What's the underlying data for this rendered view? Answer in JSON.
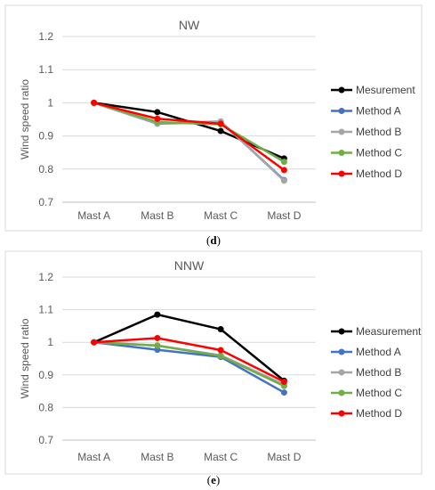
{
  "chart_data": [
    {
      "type": "line",
      "title": "NW",
      "caption_letter": "d",
      "xlabel": "",
      "ylabel": "Wind speed ratio",
      "categories": [
        "Mast A",
        "Mast B",
        "Mast C",
        "Mast D"
      ],
      "ylim": [
        0.7,
        1.2
      ],
      "yticks": [
        "0.7",
        "0.8",
        "0.9",
        "1",
        "1.1",
        "1.2"
      ],
      "grid": true,
      "legend": "right",
      "series": [
        {
          "name": "Mesurement",
          "color": "#000000",
          "values": [
            1.0,
            0.972,
            0.915,
            0.832
          ]
        },
        {
          "name": "Method A",
          "color": "#4472C4",
          "values": [
            1.0,
            0.937,
            0.943,
            0.767
          ]
        },
        {
          "name": "Method B",
          "color": "#A5A5A5",
          "values": [
            1.0,
            0.938,
            0.944,
            0.765
          ]
        },
        {
          "name": "Method C",
          "color": "#70AD47",
          "values": [
            1.0,
            0.942,
            0.935,
            0.822
          ]
        },
        {
          "name": "Method D",
          "color": "#FF0000",
          "values": [
            1.0,
            0.952,
            0.937,
            0.797
          ]
        }
      ]
    },
    {
      "type": "line",
      "title": "NNW",
      "caption_letter": "e",
      "xlabel": "",
      "ylabel": "Wind speed ratio",
      "categories": [
        "Mast A",
        "Mast B",
        "Mast C",
        "Mast D"
      ],
      "ylim": [
        0.7,
        1.2
      ],
      "yticks": [
        "0.7",
        "0.8",
        "0.9",
        "1",
        "1.1",
        "1.2"
      ],
      "grid": true,
      "legend": "right",
      "series": [
        {
          "name": "Measurement",
          "color": "#000000",
          "values": [
            1.0,
            1.085,
            1.04,
            0.882
          ]
        },
        {
          "name": "Method A",
          "color": "#4472C4",
          "values": [
            1.0,
            0.977,
            0.955,
            0.846
          ]
        },
        {
          "name": "Method B",
          "color": "#A5A5A5",
          "values": [
            1.0,
            0.99,
            0.96,
            0.87
          ]
        },
        {
          "name": "Method C",
          "color": "#70AD47",
          "values": [
            1.0,
            0.99,
            0.958,
            0.866
          ]
        },
        {
          "name": "Method D",
          "color": "#FF0000",
          "values": [
            1.0,
            1.013,
            0.976,
            0.879
          ]
        }
      ]
    }
  ]
}
